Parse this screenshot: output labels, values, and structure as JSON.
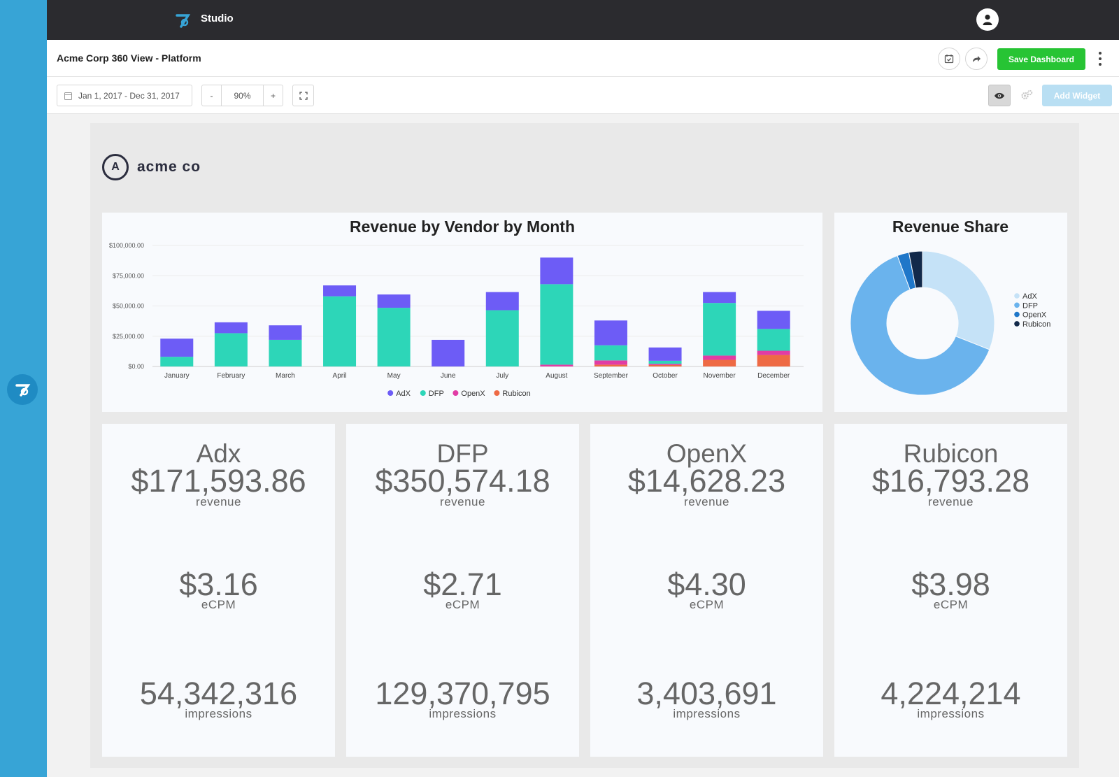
{
  "app": {
    "name": "Studio"
  },
  "dashboard": {
    "title": "Acme Corp 360 View - Platform",
    "save_label": "Save Dashboard",
    "add_widget_label": "Add Widget"
  },
  "toolbar": {
    "date_range": "Jan 1, 2017 - Dec 31, 2017",
    "zoom_minus": "-",
    "zoom_value": "90%",
    "zoom_plus": "+"
  },
  "brand": {
    "mark": "A",
    "wordmark": "acme co"
  },
  "icons": {
    "rail_logo": "studio-logo-icon",
    "user": "user-icon",
    "schedule": "calendar-check-icon",
    "share": "share-icon",
    "more": "more-vertical-icon",
    "calendar": "calendar-icon",
    "fullscreen": "fullscreen-icon",
    "preview": "eye-icon",
    "settings": "gears-icon"
  },
  "colors": {
    "adx": "#6d5cf6",
    "dfp": "#2dd6b8",
    "openx": "#e13ca5",
    "rubicon": "#ee6a45",
    "save": "#27c434",
    "rail": "#37a4d6"
  },
  "chart_data": [
    {
      "type": "bar",
      "stacked": true,
      "title": "Revenue by Vendor by Month",
      "categories": [
        "January",
        "February",
        "March",
        "April",
        "May",
        "June",
        "July",
        "August",
        "September",
        "October",
        "November",
        "December"
      ],
      "y_ticks": [
        "$0.00",
        "$25,000.00",
        "$50,000.00",
        "$75,000.00",
        "$100,000.00"
      ],
      "ylim": [
        0,
        100000
      ],
      "series": [
        {
          "name": "Rubicon",
          "color": "#ee6a45",
          "values": [
            0,
            0,
            0,
            0,
            0,
            0,
            0,
            0,
            1500,
            1200,
            5500,
            9500
          ]
        },
        {
          "name": "OpenX",
          "color": "#e13ca5",
          "values": [
            0,
            0,
            0,
            0,
            0,
            0,
            0,
            1500,
            3500,
            1000,
            3500,
            3500
          ]
        },
        {
          "name": "DFP",
          "color": "#2dd6b8",
          "values": [
            8000,
            27500,
            22000,
            58000,
            48500,
            0,
            46500,
            66500,
            12500,
            2500,
            43500,
            18000
          ]
        },
        {
          "name": "AdX",
          "color": "#6d5cf6",
          "values": [
            15000,
            9000,
            12000,
            9000,
            11000,
            22000,
            15000,
            22000,
            20500,
            11000,
            9000,
            15000
          ]
        }
      ],
      "legend": [
        "AdX",
        "DFP",
        "OpenX",
        "Rubicon"
      ],
      "legend_position": "bottom",
      "grid": true
    },
    {
      "type": "pie",
      "donut": true,
      "title": "Revenue Share",
      "labels": [
        "AdX",
        "DFP",
        "OpenX",
        "Rubicon"
      ],
      "values": [
        171593.86,
        350574.18,
        14628.23,
        16793.28
      ],
      "colors": [
        "#c5e2f7",
        "#6ab3ed",
        "#1f77c9",
        "#12294a"
      ],
      "legend_position": "right"
    }
  ],
  "cards": [
    {
      "vendor": "Adx",
      "revenue": "$171,593.86",
      "revenue_label": "revenue",
      "ecpm": "$3.16",
      "ecpm_label": "eCPM",
      "impressions": "54,342,316",
      "impressions_label": "impressions"
    },
    {
      "vendor": "DFP",
      "revenue": "$350,574.18",
      "revenue_label": "revenue",
      "ecpm": "$2.71",
      "ecpm_label": "eCPM",
      "impressions": "129,370,795",
      "impressions_label": "impressions"
    },
    {
      "vendor": "OpenX",
      "revenue": "$14,628.23",
      "revenue_label": "revenue",
      "ecpm": "$4.30",
      "ecpm_label": "eCPM",
      "impressions": "3,403,691",
      "impressions_label": "impressions"
    },
    {
      "vendor": "Rubicon",
      "revenue": "$16,793.28",
      "revenue_label": "revenue",
      "ecpm": "$3.98",
      "ecpm_label": "eCPM",
      "impressions": "4,224,214",
      "impressions_label": "impressions"
    }
  ]
}
